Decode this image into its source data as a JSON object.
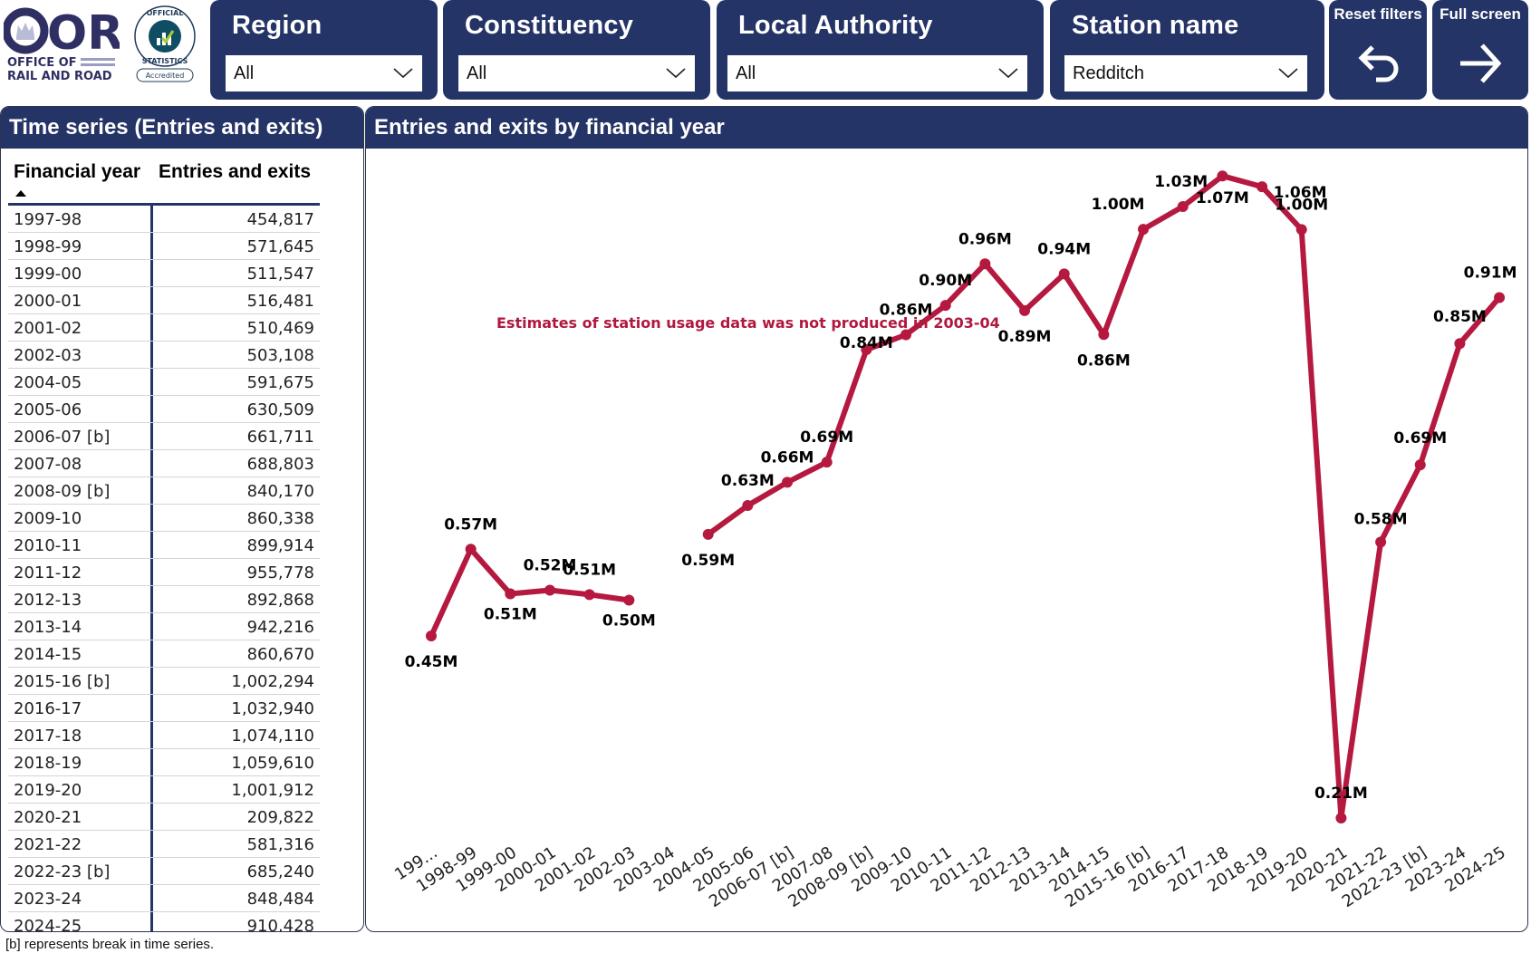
{
  "logos": {
    "orr": {
      "line1": "OFFICE OF",
      "line2": "RAIL AND ROAD",
      "wordmark": "ORR"
    },
    "ons": {
      "ring_top": "OFFICIAL",
      "ring_bottom": "STATISTICS",
      "badge": "Accredited"
    }
  },
  "filters": [
    {
      "label": "Region",
      "value": "All"
    },
    {
      "label": "Constituency",
      "value": "All"
    },
    {
      "label": "Local Authority",
      "value": "All"
    },
    {
      "label": "Station name",
      "value": "Redditch"
    }
  ],
  "actions": {
    "reset": {
      "label": "Reset filters",
      "icon": "undo-arrow-icon"
    },
    "fullscreen": {
      "label": "Full screen",
      "icon": "right-arrow-icon"
    }
  },
  "table_panel": {
    "title": "Time series (Entries and exits)",
    "columns": [
      "Financial year",
      "Entries and exits"
    ],
    "sort": "ascending",
    "rows": [
      [
        "1997-98",
        "454,817"
      ],
      [
        "1998-99",
        "571,645"
      ],
      [
        "1999-00",
        "511,547"
      ],
      [
        "2000-01",
        "516,481"
      ],
      [
        "2001-02",
        "510,469"
      ],
      [
        "2002-03",
        "503,108"
      ],
      [
        "2004-05",
        "591,675"
      ],
      [
        "2005-06",
        "630,509"
      ],
      [
        "2006-07 [b]",
        "661,711"
      ],
      [
        "2007-08",
        "688,803"
      ],
      [
        "2008-09 [b]",
        "840,170"
      ],
      [
        "2009-10",
        "860,338"
      ],
      [
        "2010-11",
        "899,914"
      ],
      [
        "2011-12",
        "955,778"
      ],
      [
        "2012-13",
        "892,868"
      ],
      [
        "2013-14",
        "942,216"
      ],
      [
        "2014-15",
        "860,670"
      ],
      [
        "2015-16 [b]",
        "1,002,294"
      ],
      [
        "2016-17",
        "1,032,940"
      ],
      [
        "2017-18",
        "1,074,110"
      ],
      [
        "2018-19",
        "1,059,610"
      ],
      [
        "2019-20",
        "1,001,912"
      ],
      [
        "2020-21",
        "209,822"
      ],
      [
        "2021-22",
        "581,316"
      ],
      [
        "2022-23 [b]",
        "685,240"
      ],
      [
        "2023-24",
        "848,484"
      ],
      [
        "2024-25",
        "910,428"
      ]
    ]
  },
  "chart_panel": {
    "title": "Entries and exits by financial year"
  },
  "footnote": "[b] represents break in time series.",
  "colors": {
    "navy": "#253466",
    "line": "#b5193f",
    "annotation": "#b0183f"
  },
  "chart_data": {
    "type": "line",
    "title": "Entries and exits by financial year",
    "xlabel": "",
    "ylabel": "",
    "grid": false,
    "legend": "none",
    "categories": [
      "1997-98",
      "1998-99",
      "1999-00",
      "2000-01",
      "2001-02",
      "2002-03",
      "2003-04",
      "2004-05",
      "2005-06",
      "2006-07 [b]",
      "2007-08",
      "2008-09 [b]",
      "2009-10",
      "2010-11",
      "2011-12",
      "2012-13",
      "2013-14",
      "2014-15",
      "2015-16 [b]",
      "2016-17",
      "2017-18",
      "2018-19",
      "2019-20",
      "2020-21",
      "2021-22",
      "2022-23 [b]",
      "2023-24",
      "2024-25"
    ],
    "tick_labels": [
      "199...",
      "1998-99",
      "1999-00",
      "2000-01",
      "2001-02",
      "2002-03",
      "2003-04",
      "2004-05",
      "2005-06",
      "2006-07 [b]",
      "2007-08",
      "2008-09 [b]",
      "2009-10",
      "2010-11",
      "2011-12",
      "2012-13",
      "2013-14",
      "2014-15",
      "2015-16 [b]",
      "2016-17",
      "2017-18",
      "2018-19",
      "2019-20",
      "2020-21",
      "2021-22",
      "2022-23 [b]",
      "2023-24",
      "2024-25"
    ],
    "series": [
      {
        "name": "Entries and exits",
        "values": [
          454817,
          571645,
          511547,
          516481,
          510469,
          503108,
          null,
          591675,
          630509,
          661711,
          688803,
          840170,
          860338,
          899914,
          955778,
          892868,
          942216,
          860670,
          1002294,
          1032940,
          1074110,
          1059610,
          1001912,
          209822,
          581316,
          685240,
          848484,
          910428
        ],
        "data_labels": [
          "0.45M",
          "0.57M",
          "0.51M",
          "0.52M",
          "0.51M",
          "0.50M",
          null,
          "0.59M",
          "0.63M",
          "0.66M",
          "0.69M",
          "0.84M",
          "0.86M",
          "0.90M",
          "0.96M",
          "0.89M",
          "0.94M",
          "0.86M",
          "1.00M",
          "1.03M",
          "1.07M",
          "1.06M",
          "1.00M",
          "0.21M",
          "0.58M",
          "0.69M",
          "0.85M",
          "0.91M"
        ],
        "label_position": [
          "below",
          "above",
          "below",
          "above",
          "above",
          "below",
          null,
          "below",
          "above",
          "above",
          "above",
          "below",
          "above",
          "above",
          "above",
          "below",
          "above",
          "below",
          "above",
          "above",
          "below",
          "above",
          "above",
          "above",
          "above",
          "above",
          "above",
          "above"
        ]
      }
    ],
    "annotations": [
      {
        "text": "Estimates of station usage data was not produced in 2003-04",
        "category": "2003-04"
      }
    ]
  }
}
